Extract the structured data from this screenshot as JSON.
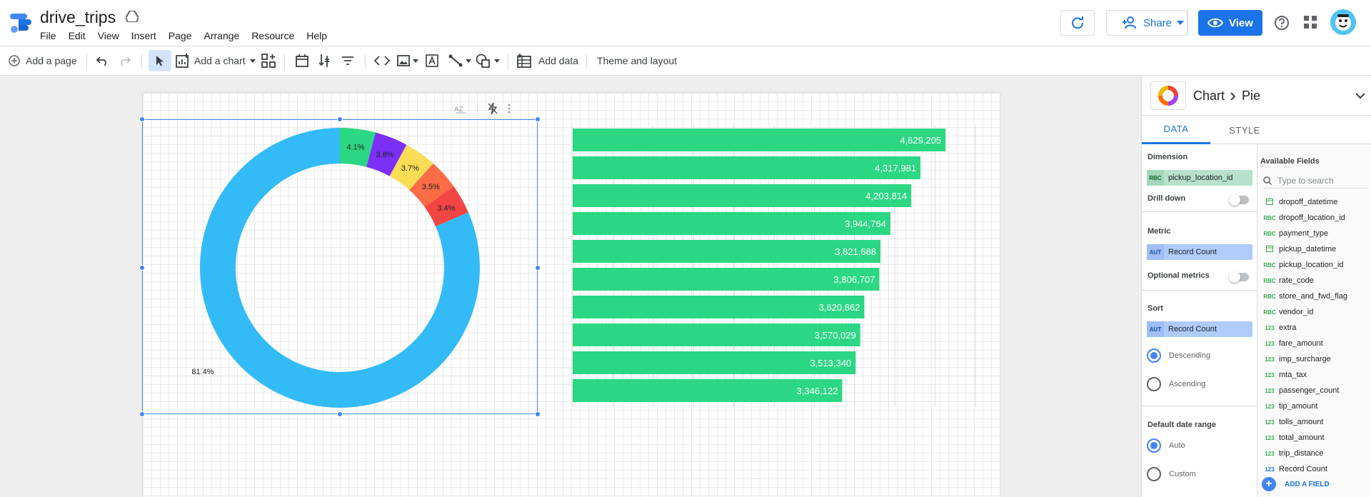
{
  "header": {
    "title": "drive_trips",
    "menu": [
      "File",
      "Edit",
      "View",
      "Insert",
      "Page",
      "Arrange",
      "Resource",
      "Help"
    ],
    "share_label": "Share",
    "view_label": "View"
  },
  "toolbar": {
    "add_page": "Add a page",
    "add_chart": "Add a chart",
    "add_data": "Add data",
    "theme_layout": "Theme and layout"
  },
  "pie_chart_data": {
    "type": "pie",
    "donut": true,
    "slices": [
      {
        "value": 81.4,
        "label": "81.4%",
        "color": "#33bbf8"
      },
      {
        "value": 4.1,
        "label": "4.1%",
        "color": "#2bd782"
      },
      {
        "value": 3.8,
        "label": "3.8%",
        "color": "#7b2ff7"
      },
      {
        "value": 3.7,
        "label": "3.7%",
        "color": "#fbdd55"
      },
      {
        "value": 3.5,
        "label": "3.5%",
        "color": "#fd6c44"
      },
      {
        "value": 3.4,
        "label": "3.4%",
        "color": "#f44545"
      }
    ]
  },
  "chart_data": {
    "type": "bar",
    "orientation": "horizontal",
    "values": [
      4629205,
      4317981,
      4203814,
      3944764,
      3821688,
      3806707,
      3620862,
      3570029,
      3513340,
      3346122
    ],
    "labels": [
      "4,629,205",
      "4,317,981",
      "4,203,814",
      "3,944,764",
      "3,821,688",
      "3,806,707",
      "3,620,862",
      "3,570,029",
      "3,513,340",
      "3,346,122"
    ],
    "xlim": [
      0,
      5000000
    ],
    "grid": true,
    "bar_color": "#2bd783"
  },
  "panel": {
    "crumb_root": "Chart",
    "crumb_leaf": "Pie",
    "tab_data": "DATA",
    "tab_style": "STYLE",
    "dimension_title": "Dimension",
    "dimension_type": "RBC",
    "dimension_field": "pickup_location_id",
    "drill_down": "Drill down",
    "metric_title": "Metric",
    "metric_type": "AUT",
    "metric_field": "Record Count",
    "optional_metrics": "Optional metrics",
    "sort_title": "Sort",
    "sort_type": "AUT",
    "sort_field": "Record Count",
    "descending": "Descending",
    "ascending": "Ascending",
    "date_range_title": "Default date range",
    "auto": "Auto",
    "custom": "Custom",
    "available_title": "Available Fields",
    "search_placeholder": "Type to search",
    "fields": [
      {
        "name": "dropoff_datetime",
        "type": "date"
      },
      {
        "name": "dropoff_location_id",
        "type": "RBC"
      },
      {
        "name": "payment_type",
        "type": "RBC"
      },
      {
        "name": "pickup_datetime",
        "type": "date"
      },
      {
        "name": "pickup_location_id",
        "type": "RBC"
      },
      {
        "name": "rate_code",
        "type": "RBC"
      },
      {
        "name": "store_and_fwd_flag",
        "type": "RBC"
      },
      {
        "name": "vendor_id",
        "type": "RBC"
      },
      {
        "name": "extra",
        "type": "123"
      },
      {
        "name": "fare_amount",
        "type": "123"
      },
      {
        "name": "imp_surcharge",
        "type": "123"
      },
      {
        "name": "mta_tax",
        "type": "123"
      },
      {
        "name": "passenger_count",
        "type": "123"
      },
      {
        "name": "tip_amount",
        "type": "123"
      },
      {
        "name": "tolls_amount",
        "type": "123"
      },
      {
        "name": "total_amount",
        "type": "123"
      },
      {
        "name": "trip_distance",
        "type": "123"
      },
      {
        "name": "Record Count",
        "type": "123b"
      }
    ],
    "add_field": "ADD A FIELD"
  },
  "colors": {
    "accent": "#1a73e8",
    "selection": "#4285f4"
  }
}
